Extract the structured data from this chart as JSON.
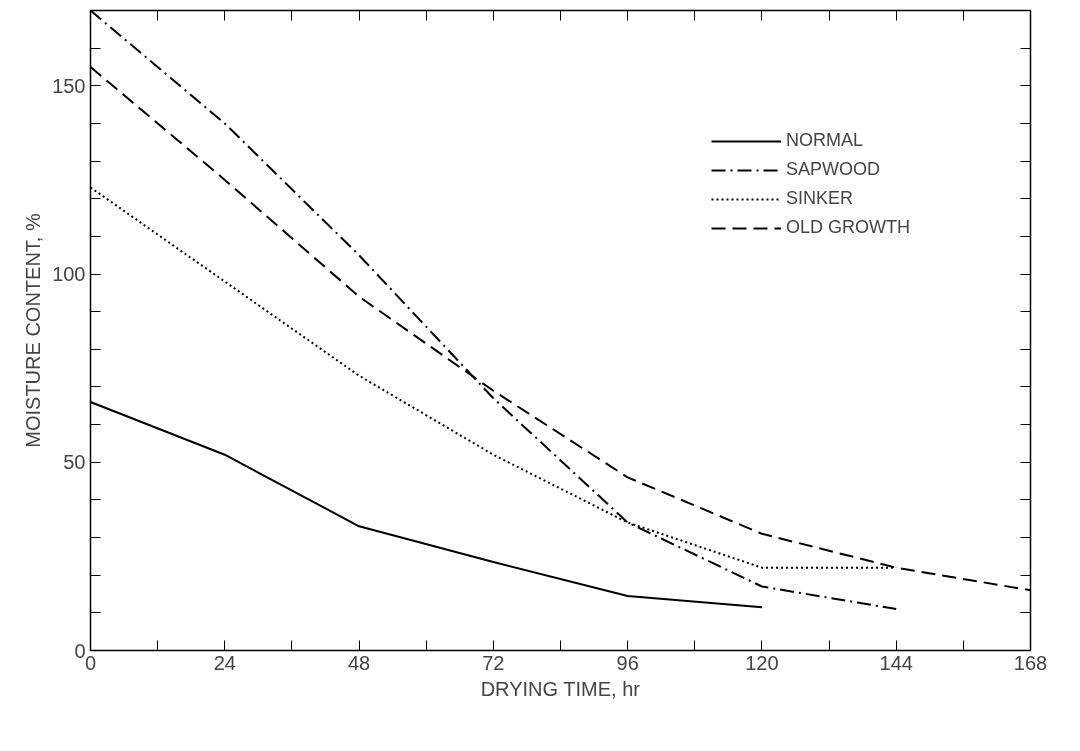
{
  "chart_data": {
    "type": "line",
    "xlabel": "DRYING TIME, hr",
    "ylabel": "MOISTURE CONTENT, %",
    "xlim": [
      0,
      168
    ],
    "ylim": [
      0,
      170
    ],
    "xticks": [
      0,
      {
        "value": 12,
        "label": null
      },
      24,
      {
        "value": 36,
        "label": null
      },
      48,
      {
        "value": 60,
        "label": null
      },
      72,
      {
        "value": 84,
        "label": null
      },
      96,
      {
        "value": 108,
        "label": null
      },
      120,
      {
        "value": 132,
        "label": null
      },
      144,
      {
        "value": 156,
        "label": null
      },
      168
    ],
    "yticks": [
      0,
      {
        "value": 10,
        "label": null
      },
      {
        "value": 20,
        "label": null
      },
      {
        "value": 30,
        "label": null
      },
      {
        "value": 40,
        "label": null
      },
      50,
      {
        "value": 60,
        "label": null
      },
      {
        "value": 70,
        "label": null
      },
      {
        "value": 80,
        "label": null
      },
      {
        "value": 90,
        "label": null
      },
      100,
      {
        "value": 110,
        "label": null
      },
      {
        "value": 120,
        "label": null
      },
      {
        "value": 130,
        "label": null
      },
      {
        "value": 140,
        "label": null
      },
      150,
      {
        "value": 160,
        "label": null
      }
    ],
    "grid": false,
    "legend": "top right",
    "marker": "none",
    "series": [
      {
        "name": "NORMAL",
        "color": "#000000",
        "line_style": "solid",
        "x": [
          0,
          24,
          48,
          72,
          96,
          120
        ],
        "values": [
          66,
          52,
          33,
          23.5,
          14.5,
          11.5
        ]
      },
      {
        "name": "SAPWOOD",
        "color": "#000000",
        "line_style": "dashdot",
        "x": [
          0,
          24,
          48,
          72,
          96,
          120,
          144
        ],
        "values": [
          170,
          140,
          105,
          67,
          34,
          17,
          11
        ]
      },
      {
        "name": "SINKER",
        "color": "#000000",
        "line_style": "dotted",
        "x": [
          0,
          24,
          48,
          72,
          96,
          120,
          144
        ],
        "values": [
          123,
          98,
          73,
          52,
          34,
          22,
          22
        ]
      },
      {
        "name": "OLD GROWTH",
        "color": "#000000",
        "line_style": "dashed",
        "x": [
          0,
          24,
          48,
          72,
          96,
          120,
          144,
          168
        ],
        "values": [
          155,
          125,
          94,
          69,
          46,
          31,
          22,
          16
        ]
      }
    ]
  }
}
